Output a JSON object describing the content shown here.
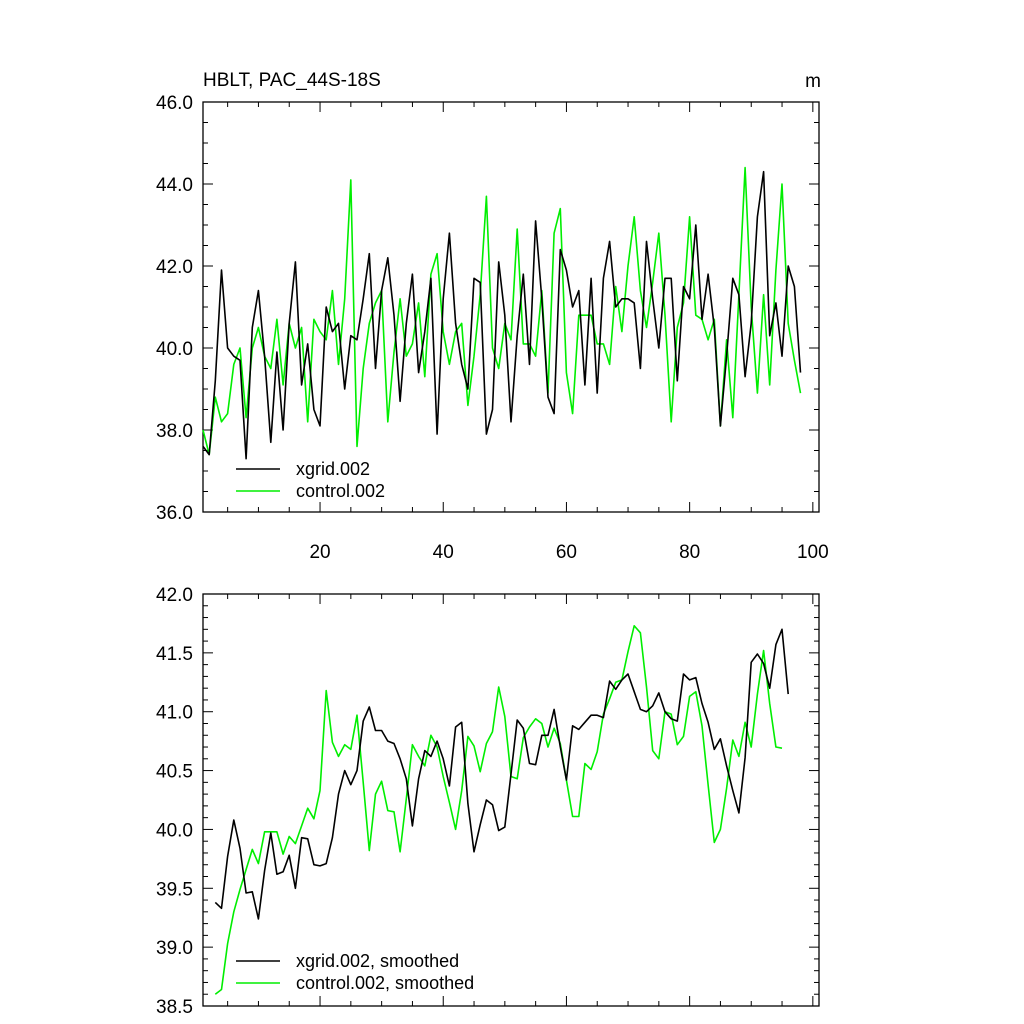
{
  "chart_data": [
    {
      "type": "line",
      "title": "HBLT, PAC_44S-18S",
      "units": "m",
      "xlim": [
        1,
        101
      ],
      "ylim": [
        36.0,
        46.0
      ],
      "yticks": [
        "36.0",
        "38.0",
        "40.0",
        "42.0",
        "44.0",
        "46.0"
      ],
      "xticks": [
        "20",
        "40",
        "60",
        "80",
        "100"
      ],
      "legend_position": "bottom-left",
      "series": [
        {
          "name": "xgrid.002",
          "color": "#000000",
          "x_start": 1,
          "values": [
            37.6,
            37.4,
            39.2,
            41.9,
            40.0,
            39.8,
            39.7,
            37.3,
            40.5,
            41.4,
            39.8,
            37.7,
            39.9,
            38.0,
            40.6,
            42.1,
            39.1,
            40.1,
            38.5,
            38.1,
            41.0,
            40.4,
            40.6,
            39.0,
            40.3,
            40.2,
            41.2,
            42.3,
            39.5,
            41.4,
            42.2,
            40.8,
            38.7,
            40.6,
            41.8,
            39.4,
            40.4,
            41.7,
            37.9,
            41.2,
            42.8,
            40.6,
            39.6,
            39.0,
            41.7,
            41.6,
            37.9,
            38.5,
            42.1,
            40.8,
            38.2,
            40.3,
            41.8,
            39.6,
            43.1,
            41.2,
            38.8,
            38.4,
            42.4,
            41.9,
            41.0,
            41.4,
            39.1,
            41.7,
            38.9,
            41.7,
            42.6,
            41.0,
            41.2,
            41.2,
            41.1,
            39.5,
            42.6,
            41.2,
            40.0,
            41.7,
            41.7,
            39.2,
            41.5,
            41.2,
            43.0,
            40.7,
            41.8,
            40.5,
            38.1,
            39.8,
            41.7,
            41.3,
            39.3,
            40.6,
            43.2,
            44.3,
            40.3,
            41.1,
            39.8,
            42.0,
            41.5,
            39.4
          ]
        },
        {
          "name": "control.002",
          "color": "#00ee00",
          "x_start": 1,
          "values": [
            38.0,
            37.4,
            38.8,
            38.2,
            38.4,
            39.6,
            40.0,
            38.3,
            40.0,
            40.5,
            39.8,
            39.5,
            40.7,
            39.1,
            40.6,
            40.0,
            40.5,
            38.2,
            40.7,
            40.4,
            40.2,
            41.4,
            39.6,
            41.2,
            44.1,
            37.6,
            39.5,
            40.6,
            41.1,
            41.4,
            38.2,
            39.9,
            41.2,
            39.8,
            40.1,
            41.1,
            39.3,
            41.8,
            42.3,
            40.4,
            39.6,
            40.4,
            40.6,
            38.6,
            39.8,
            41.3,
            43.7,
            40.0,
            39.5,
            40.6,
            40.2,
            42.9,
            40.1,
            40.1,
            39.8,
            41.4,
            38.9,
            42.8,
            43.4,
            39.4,
            38.4,
            40.8,
            40.8,
            40.8,
            40.1,
            40.1,
            39.6,
            41.5,
            40.4,
            42.0,
            43.2,
            41.4,
            40.5,
            41.6,
            42.8,
            40.8,
            38.2,
            40.5,
            41.1,
            43.2,
            40.8,
            40.7,
            40.2,
            40.7,
            38.1,
            40.2,
            38.3,
            41.3,
            44.4,
            41.0,
            38.9,
            41.3,
            39.1,
            41.9,
            44.0,
            40.6,
            39.7,
            38.9
          ]
        }
      ]
    },
    {
      "type": "line",
      "title": "",
      "xlim": [
        1,
        101
      ],
      "ylim": [
        38.5,
        42.0
      ],
      "yticks": [
        "38.5",
        "39.0",
        "39.5",
        "40.0",
        "40.5",
        "41.0",
        "41.5",
        "42.0"
      ],
      "xticks": [],
      "legend_position": "bottom-left",
      "series": [
        {
          "name": "xgrid.002, smoothed",
          "color": "#000000",
          "x_start": 3,
          "values": [
            39.38,
            39.33,
            39.77,
            40.08,
            39.84,
            39.46,
            39.47,
            39.24,
            39.65,
            39.97,
            39.62,
            39.64,
            39.78,
            39.5,
            39.93,
            39.92,
            39.7,
            39.69,
            39.71,
            39.93,
            40.3,
            40.5,
            40.38,
            40.5,
            40.92,
            41.04,
            40.84,
            40.84,
            40.75,
            40.73,
            40.6,
            40.43,
            40.03,
            40.43,
            40.67,
            40.62,
            40.75,
            40.6,
            40.37,
            40.87,
            40.91,
            40.22,
            39.81,
            40.04,
            40.25,
            40.21,
            39.99,
            40.02,
            40.47,
            40.93,
            40.86,
            40.56,
            40.55,
            40.8,
            40.8,
            41.02,
            40.7,
            40.42,
            40.88,
            40.85,
            40.91,
            40.97,
            40.97,
            40.95,
            41.26,
            41.19,
            41.27,
            41.32,
            41.17,
            41.02,
            41.0,
            41.05,
            41.16,
            41.0,
            40.94,
            40.92,
            41.32,
            41.27,
            41.29,
            41.07,
            40.91,
            40.68,
            40.77,
            40.54,
            40.33,
            40.14,
            40.61,
            41.42,
            41.49,
            41.41,
            41.2,
            41.57,
            41.7,
            41.15
          ]
        },
        {
          "name": "control.002, smoothed",
          "color": "#00ee00",
          "x_start": 3,
          "values": [
            38.6,
            38.64,
            39.03,
            39.3,
            39.49,
            39.66,
            39.83,
            39.71,
            39.98,
            39.98,
            39.98,
            39.79,
            39.94,
            39.88,
            40.03,
            40.18,
            40.09,
            40.33,
            41.18,
            40.74,
            40.62,
            40.72,
            40.68,
            40.97,
            40.4,
            39.82,
            40.3,
            40.41,
            40.16,
            40.15,
            39.81,
            40.26,
            40.72,
            40.62,
            40.54,
            40.8,
            40.7,
            40.45,
            40.23,
            40.0,
            40.33,
            40.79,
            40.71,
            40.49,
            40.73,
            40.83,
            41.21,
            40.96,
            40.45,
            40.43,
            40.78,
            40.87,
            40.94,
            40.9,
            40.7,
            40.86,
            40.73,
            40.42,
            40.11,
            40.11,
            40.56,
            40.51,
            40.66,
            40.98,
            41.11,
            41.25,
            41.27,
            41.51,
            41.73,
            41.67,
            41.21,
            40.67,
            40.6,
            41.0,
            40.98,
            40.72,
            40.79,
            41.13,
            41.17,
            40.88,
            40.38,
            39.89,
            40.0,
            40.35,
            40.76,
            40.62,
            40.91,
            40.7,
            41.15,
            41.52,
            41.07,
            40.7,
            40.69
          ]
        }
      ]
    }
  ]
}
